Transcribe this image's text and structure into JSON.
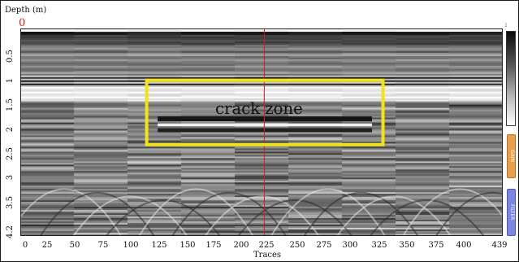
{
  "axis": {
    "y_title": "Depth (m)",
    "y_origin_label": "0",
    "y_ticks": [
      "0.5",
      "1",
      "1.5",
      "2",
      "2.5",
      "3",
      "3.5",
      "4.2"
    ],
    "x_title": "Traces",
    "x_ticks": [
      "0",
      "25",
      "50",
      "75",
      "100",
      "125",
      "150",
      "175",
      "200",
      "225",
      "250",
      "275",
      "300",
      "325",
      "350",
      "375",
      "400",
      "439"
    ],
    "traces_max": 439,
    "depth_max": 4.2
  },
  "annotation": {
    "label": "crack zone",
    "traces_start": 115,
    "traces_end": 330,
    "depth_start": 1.05,
    "depth_end": 2.35,
    "color": "#f2e21c"
  },
  "marker": {
    "trace": 222,
    "color": "#d81a1a"
  },
  "side_panel": {
    "scale_top_value": "1",
    "gain_label": "GAIN",
    "filter_label": "FILTER",
    "gain_color": "#e8a04a",
    "filter_color": "#7d86e0"
  }
}
